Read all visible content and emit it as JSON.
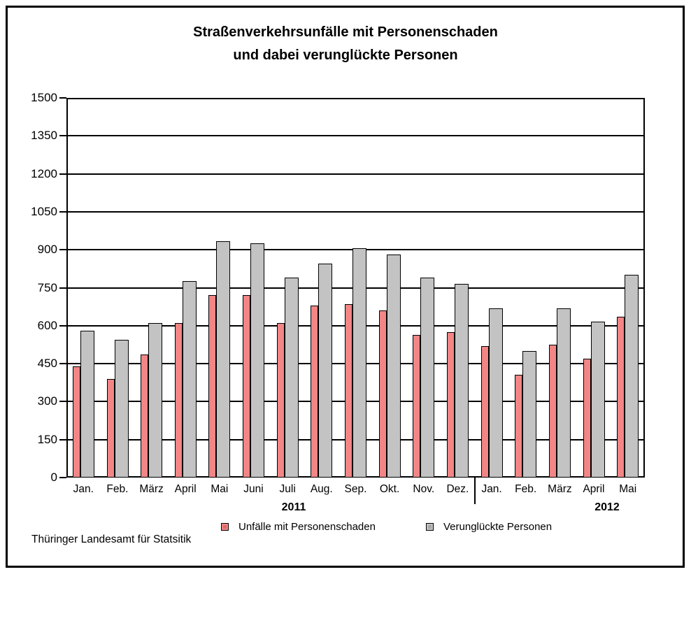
{
  "title": {
    "line1": "Straßenverkehrsunfälle mit Personenschaden",
    "line2": "und dabei verunglückte Personen"
  },
  "source": "Thüringer Landesamt für Statsitik",
  "colors": {
    "unfaelle_fill": "#F28585",
    "unfaelle_dot": "#D96B6B",
    "verunglueckte_fill": "#C3C3C3",
    "verunglueckte_dot": "#A8A8A8",
    "axis": "#000000"
  },
  "chart_data": {
    "type": "bar",
    "categories": [
      "Jan.",
      "Feb.",
      "März",
      "April",
      "Mai",
      "Juni",
      "Juli",
      "Aug.",
      "Sep.",
      "Okt.",
      "Nov.",
      "Dez.",
      "Jan.",
      "Feb.",
      "März",
      "April",
      "Mai"
    ],
    "series": [
      {
        "name": "Unfälle mit Personenschaden",
        "color": "#F28585",
        "values": [
          440,
          390,
          485,
          610,
          720,
          720,
          610,
          680,
          685,
          660,
          565,
          575,
          520,
          405,
          525,
          470,
          635
        ]
      },
      {
        "name": "Verunglückte Personen",
        "color": "#C3C3C3",
        "values": [
          580,
          545,
          610,
          775,
          935,
          925,
          790,
          845,
          905,
          880,
          790,
          765,
          670,
          500,
          670,
          615,
          800
        ]
      }
    ],
    "year_groups": [
      {
        "label": "2011",
        "from": 0,
        "to": 11
      },
      {
        "label": "2012",
        "from": 12,
        "to": 16
      }
    ],
    "title": "Straßenverkehrsunfälle mit Personenschaden und dabei verunglückte Personen",
    "xlabel": "",
    "ylabel": "",
    "ylim": [
      0,
      1500
    ],
    "ytick_step": 150,
    "grid": true,
    "legend_position": "bottom"
  }
}
